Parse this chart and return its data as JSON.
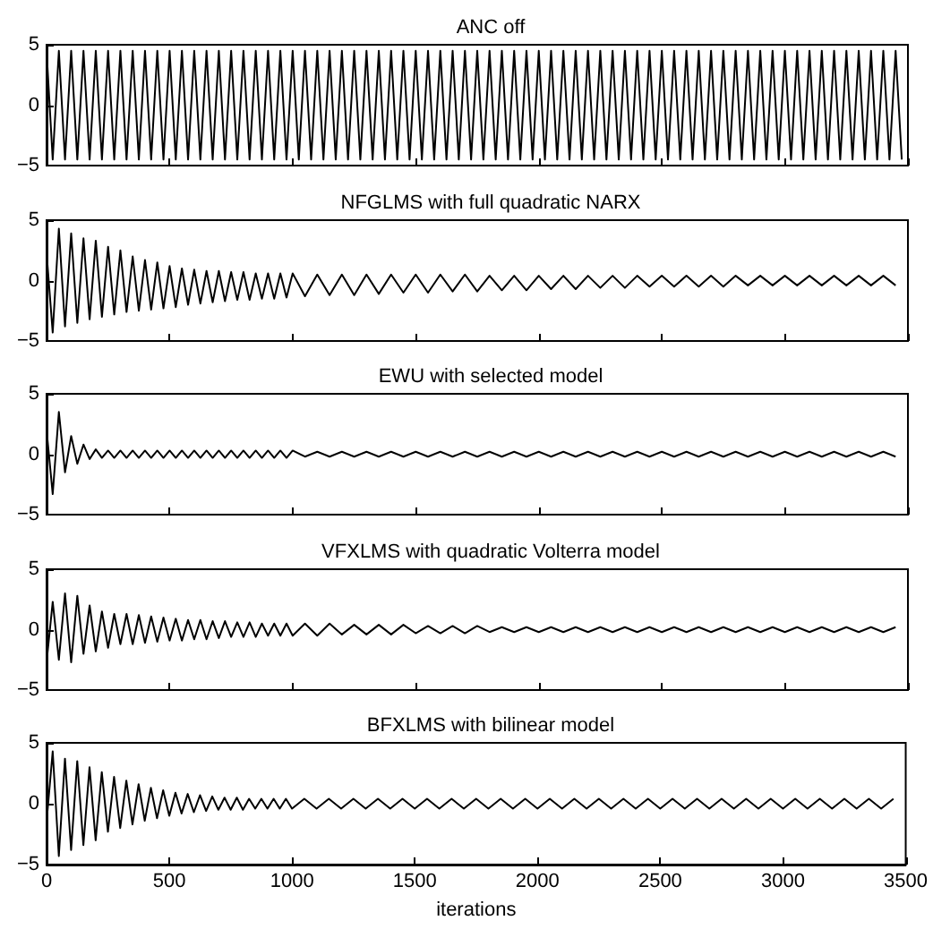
{
  "chart_data": [
    {
      "type": "line",
      "title": "ANC off",
      "color": "#000000",
      "xlim": [
        0,
        3500
      ],
      "xticks": [
        0,
        500,
        1000,
        1500,
        2000,
        2500,
        3000,
        3500
      ],
      "ylim": [
        -5,
        5
      ],
      "yticks": [
        -5,
        0,
        5
      ],
      "tick_labels": "y",
      "grid": false,
      "x": [
        0,
        25,
        50,
        75,
        100,
        125,
        150,
        175,
        200,
        225,
        250,
        275,
        300,
        325,
        350,
        375,
        400,
        425,
        450,
        475,
        500,
        525,
        550,
        575,
        600,
        625,
        650,
        675,
        700,
        725,
        750,
        775,
        800,
        825,
        850,
        875,
        900,
        925,
        950,
        975,
        1000,
        1025,
        1050,
        1075,
        1100,
        1125,
        1150,
        1175,
        1200,
        1225,
        1250,
        1275,
        1300,
        1325,
        1350,
        1375,
        1400,
        1425,
        1450,
        1475,
        1500,
        1525,
        1550,
        1575,
        1600,
        1625,
        1650,
        1675,
        1700,
        1725,
        1750,
        1775,
        1800,
        1825,
        1850,
        1875,
        1900,
        1925,
        1950,
        1975,
        2000,
        2025,
        2050,
        2075,
        2100,
        2125,
        2150,
        2175,
        2200,
        2225,
        2250,
        2275,
        2300,
        2325,
        2350,
        2375,
        2400,
        2425,
        2450,
        2475,
        2500,
        2525,
        2550,
        2575,
        2600,
        2625,
        2650,
        2675,
        2700,
        2725,
        2750,
        2775,
        2800,
        2825,
        2850,
        2875,
        2900,
        2925,
        2950,
        2975,
        3000,
        3025,
        3050,
        3075,
        3100,
        3125,
        3150,
        3175,
        3200,
        3225,
        3250,
        3275,
        3300,
        3325,
        3350,
        3375,
        3400,
        3425,
        3450,
        3475
      ],
      "values": [
        4.5,
        -4.5,
        4.5,
        -4.5,
        4.5,
        -4.5,
        4.5,
        -4.5,
        4.5,
        -4.5,
        4.5,
        -4.5,
        4.5,
        -4.5,
        4.5,
        -4.5,
        4.5,
        -4.5,
        4.5,
        -4.5,
        4.5,
        -4.5,
        4.5,
        -4.5,
        4.5,
        -4.5,
        4.5,
        -4.5,
        4.5,
        -4.5,
        4.5,
        -4.5,
        4.5,
        -4.5,
        4.5,
        -4.5,
        4.5,
        -4.5,
        4.5,
        -4.5,
        4.5,
        -4.5,
        4.5,
        -4.5,
        4.5,
        -4.5,
        4.5,
        -4.5,
        4.5,
        -4.5,
        4.5,
        -4.5,
        4.5,
        -4.5,
        4.5,
        -4.5,
        4.5,
        -4.5,
        4.5,
        -4.5,
        4.5,
        -4.5,
        4.5,
        -4.5,
        4.5,
        -4.5,
        4.5,
        -4.5,
        4.5,
        -4.5,
        4.5,
        -4.5,
        4.5,
        -4.5,
        4.5,
        -4.5,
        4.5,
        -4.5,
        4.5,
        -4.5,
        4.5,
        -4.5,
        4.5,
        -4.5,
        4.5,
        -4.5,
        4.5,
        -4.5,
        4.5,
        -4.5,
        4.5,
        -4.5,
        4.5,
        -4.5,
        4.5,
        -4.5,
        4.5,
        -4.5,
        4.5,
        -4.5,
        4.5,
        -4.5,
        4.5,
        -4.5,
        4.5,
        -4.5,
        4.5,
        -4.5,
        4.5,
        -4.5,
        4.5,
        -4.5,
        4.5,
        -4.5,
        4.5,
        -4.5,
        4.5,
        -4.5,
        4.5,
        -4.5,
        4.5,
        -4.5,
        4.5,
        -4.5,
        4.5,
        -4.5,
        4.5,
        -4.5,
        4.5,
        -4.5,
        4.5,
        -4.5,
        4.5,
        -4.5,
        4.5,
        -4.5,
        4.5,
        -4.5,
        4.5,
        -4.5
      ]
    },
    {
      "type": "line",
      "title": "NFGLMS with full quadratic NARX",
      "color": "#000000",
      "xlim": [
        0,
        3500
      ],
      "xticks": [
        0,
        500,
        1000,
        1500,
        2000,
        2500,
        3000,
        3500
      ],
      "ylim": [
        -5,
        5
      ],
      "yticks": [
        -5,
        0,
        5
      ],
      "tick_labels": "y",
      "grid": false,
      "x": [
        0,
        25,
        50,
        75,
        100,
        125,
        150,
        175,
        200,
        225,
        250,
        275,
        300,
        325,
        350,
        375,
        400,
        425,
        450,
        475,
        500,
        525,
        550,
        575,
        600,
        625,
        650,
        675,
        700,
        725,
        750,
        775,
        800,
        825,
        850,
        875,
        900,
        925,
        950,
        975,
        1000,
        1050,
        1100,
        1150,
        1200,
        1250,
        1300,
        1350,
        1400,
        1450,
        1500,
        1550,
        1600,
        1650,
        1700,
        1750,
        1800,
        1850,
        1900,
        1950,
        2000,
        2050,
        2100,
        2150,
        2200,
        2250,
        2300,
        2350,
        2400,
        2450,
        2500,
        2550,
        2600,
        2650,
        2700,
        2750,
        2800,
        2850,
        2900,
        2950,
        3000,
        3050,
        3100,
        3150,
        3200,
        3250,
        3300,
        3350,
        3400,
        3450
      ],
      "values": [
        2.3,
        -4.3,
        4.3,
        -3.8,
        3.9,
        -3.5,
        3.5,
        -3.2,
        3.3,
        -3,
        2.8,
        -2.8,
        2.5,
        -2.6,
        2,
        -2.5,
        1.7,
        -2.4,
        1.5,
        -2.3,
        1.2,
        -2.2,
        1,
        -2,
        0.9,
        -1.9,
        0.8,
        -1.8,
        0.8,
        -1.7,
        0.7,
        -1.6,
        0.7,
        -1.6,
        0.6,
        -1.5,
        0.6,
        -1.5,
        0.6,
        -1.4,
        0.6,
        -1.3,
        0.5,
        -1.2,
        0.5,
        -1.2,
        0.5,
        -1.1,
        0.5,
        -1,
        0.5,
        -1,
        0.5,
        -0.9,
        0.5,
        -0.9,
        0.4,
        -0.8,
        0.4,
        -0.8,
        0.4,
        -0.7,
        0.4,
        -0.7,
        0.4,
        -0.6,
        0.4,
        -0.6,
        0.4,
        -0.5,
        0.4,
        -0.5,
        0.4,
        -0.5,
        0.4,
        -0.5,
        0.4,
        -0.4,
        0.4,
        -0.4,
        0.4,
        -0.4,
        0.4,
        -0.4,
        0.4,
        -0.4,
        0.4,
        -0.4,
        0.4,
        -0.4
      ]
    },
    {
      "type": "line",
      "title": "EWU with selected model",
      "color": "#000000",
      "xlim": [
        0,
        3500
      ],
      "xticks": [
        0,
        500,
        1000,
        1500,
        2000,
        2500,
        3000,
        3500
      ],
      "ylim": [
        -5,
        5
      ],
      "yticks": [
        -5,
        0,
        5
      ],
      "tick_labels": "y",
      "grid": false,
      "x": [
        0,
        25,
        50,
        75,
        100,
        125,
        150,
        175,
        200,
        225,
        250,
        275,
        300,
        325,
        350,
        375,
        400,
        425,
        450,
        475,
        500,
        525,
        550,
        575,
        600,
        625,
        650,
        675,
        700,
        725,
        750,
        775,
        800,
        825,
        850,
        875,
        900,
        925,
        950,
        975,
        1000,
        1050,
        1100,
        1150,
        1200,
        1250,
        1300,
        1350,
        1400,
        1450,
        1500,
        1550,
        1600,
        1650,
        1700,
        1750,
        1800,
        1850,
        1900,
        1950,
        2000,
        2050,
        2100,
        2150,
        2200,
        2250,
        2300,
        2350,
        2400,
        2450,
        2500,
        2550,
        2600,
        2650,
        2700,
        2750,
        2800,
        2850,
        2900,
        2950,
        3000,
        3050,
        3100,
        3150,
        3200,
        3250,
        3300,
        3350,
        3400,
        3450
      ],
      "values": [
        2,
        -3.3,
        3.5,
        -1.5,
        1.5,
        -0.8,
        0.8,
        -0.4,
        0.4,
        -0.3,
        0.3,
        -0.3,
        0.3,
        -0.3,
        0.3,
        -0.3,
        0.3,
        -0.3,
        0.3,
        -0.3,
        0.3,
        -0.3,
        0.3,
        -0.3,
        0.3,
        -0.3,
        0.3,
        -0.3,
        0.3,
        -0.3,
        0.3,
        -0.3,
        0.3,
        -0.3,
        0.3,
        -0.3,
        0.3,
        -0.3,
        0.3,
        -0.3,
        0.3,
        -0.2,
        0.2,
        -0.2,
        0.2,
        -0.2,
        0.2,
        -0.2,
        0.2,
        -0.2,
        0.2,
        -0.2,
        0.2,
        -0.2,
        0.2,
        -0.2,
        0.2,
        -0.2,
        0.2,
        -0.2,
        0.2,
        -0.2,
        0.2,
        -0.2,
        0.2,
        -0.2,
        0.2,
        -0.2,
        0.2,
        -0.2,
        0.2,
        -0.2,
        0.2,
        -0.2,
        0.2,
        -0.2,
        0.2,
        -0.2,
        0.2,
        -0.2,
        0.2,
        -0.2,
        0.2,
        -0.2,
        0.2,
        -0.2,
        0.2,
        -0.2,
        0.2,
        -0.2
      ]
    },
    {
      "type": "line",
      "title": "VFXLMS with quadratic Volterra model",
      "color": "#000000",
      "xlim": [
        0,
        3500
      ],
      "xticks": [
        0,
        500,
        1000,
        1500,
        2000,
        2500,
        3000,
        3500
      ],
      "ylim": [
        -5,
        5
      ],
      "yticks": [
        -5,
        0,
        5
      ],
      "tick_labels": "y",
      "grid": false,
      "x": [
        0,
        25,
        50,
        75,
        100,
        125,
        150,
        175,
        200,
        225,
        250,
        275,
        300,
        325,
        350,
        375,
        400,
        425,
        450,
        475,
        500,
        525,
        550,
        575,
        600,
        625,
        650,
        675,
        700,
        725,
        750,
        775,
        800,
        825,
        850,
        875,
        900,
        925,
        950,
        975,
        1000,
        1050,
        1100,
        1150,
        1200,
        1250,
        1300,
        1350,
        1400,
        1450,
        1500,
        1550,
        1600,
        1650,
        1700,
        1750,
        1800,
        1850,
        1900,
        1950,
        2000,
        2050,
        2100,
        2150,
        2200,
        2250,
        2300,
        2350,
        2400,
        2450,
        2500,
        2550,
        2600,
        2650,
        2700,
        2750,
        2800,
        2850,
        2900,
        2950,
        3000,
        3050,
        3100,
        3150,
        3200,
        3250,
        3300,
        3350,
        3400,
        3450
      ],
      "values": [
        -2.7,
        2.3,
        -2.5,
        3,
        -2.7,
        2.8,
        -2,
        2,
        -1.8,
        1.5,
        -1.5,
        1.3,
        -1.2,
        1.3,
        -1.2,
        1.2,
        -1.1,
        1.1,
        -1,
        1,
        -0.9,
        0.9,
        -0.9,
        0.8,
        -0.8,
        0.8,
        -0.8,
        0.7,
        -0.7,
        0.7,
        -0.6,
        0.6,
        -0.6,
        0.6,
        -0.6,
        0.5,
        -0.5,
        0.5,
        -0.5,
        0.5,
        -0.5,
        0.5,
        -0.5,
        0.5,
        -0.4,
        0.4,
        -0.4,
        0.4,
        -0.4,
        0.4,
        -0.3,
        0.3,
        -0.3,
        0.3,
        -0.3,
        0.3,
        -0.2,
        0.2,
        -0.2,
        0.2,
        -0.2,
        0.2,
        -0.2,
        0.2,
        -0.2,
        0.2,
        -0.2,
        0.2,
        -0.2,
        0.2,
        -0.2,
        0.2,
        -0.2,
        0.2,
        -0.2,
        0.2,
        -0.2,
        0.2,
        -0.2,
        0.2,
        -0.2,
        0.2,
        -0.2,
        0.2,
        -0.2,
        0.2,
        -0.2,
        0.2,
        -0.2,
        0.2
      ]
    },
    {
      "type": "line",
      "title": "BFXLMS with bilinear model",
      "xlabel": "iterations",
      "color": "#000000",
      "xlim": [
        0,
        3500
      ],
      "xticks": [
        0,
        500,
        1000,
        1500,
        2000,
        2500,
        3000,
        3500
      ],
      "ylim": [
        -5,
        5
      ],
      "yticks": [
        -5,
        0,
        5
      ],
      "grid": false,
      "x": [
        0,
        25,
        50,
        75,
        100,
        125,
        150,
        175,
        200,
        225,
        250,
        275,
        300,
        325,
        350,
        375,
        400,
        425,
        450,
        475,
        500,
        525,
        550,
        575,
        600,
        625,
        650,
        675,
        700,
        725,
        750,
        775,
        800,
        825,
        850,
        875,
        900,
        925,
        950,
        975,
        1000,
        1050,
        1100,
        1150,
        1200,
        1250,
        1300,
        1350,
        1400,
        1450,
        1500,
        1550,
        1600,
        1650,
        1700,
        1750,
        1800,
        1850,
        1900,
        1950,
        2000,
        2050,
        2100,
        2150,
        2200,
        2250,
        2300,
        2350,
        2400,
        2450,
        2500,
        2550,
        2600,
        2650,
        2700,
        2750,
        2800,
        2850,
        2900,
        2950,
        3000,
        3050,
        3100,
        3150,
        3200,
        3250,
        3300,
        3350,
        3400,
        3450
      ],
      "values": [
        -1.5,
        4.3,
        -4.3,
        3.7,
        -3.8,
        3.5,
        -3.4,
        3,
        -3,
        2.6,
        -2.3,
        2.2,
        -2,
        1.9,
        -1.7,
        1.6,
        -1.4,
        1.3,
        -1.2,
        1.1,
        -1,
        0.9,
        -0.8,
        0.8,
        -0.7,
        0.7,
        -0.6,
        0.6,
        -0.5,
        0.5,
        -0.5,
        0.5,
        -0.5,
        0.4,
        -0.4,
        0.4,
        -0.4,
        0.4,
        -0.4,
        0.4,
        -0.4,
        0.4,
        -0.4,
        0.4,
        -0.4,
        0.4,
        -0.4,
        0.4,
        -0.4,
        0.4,
        -0.4,
        0.4,
        -0.4,
        0.4,
        -0.4,
        0.4,
        -0.4,
        0.4,
        -0.4,
        0.4,
        -0.4,
        0.4,
        -0.4,
        0.4,
        -0.4,
        0.4,
        -0.4,
        0.4,
        -0.4,
        0.4,
        -0.4,
        0.4,
        -0.4,
        0.4,
        -0.4,
        0.4,
        -0.4,
        0.4,
        -0.4,
        0.4,
        -0.4,
        0.4,
        -0.4,
        0.4,
        -0.4,
        0.4,
        -0.4,
        0.4,
        -0.4,
        0.4
      ]
    }
  ]
}
